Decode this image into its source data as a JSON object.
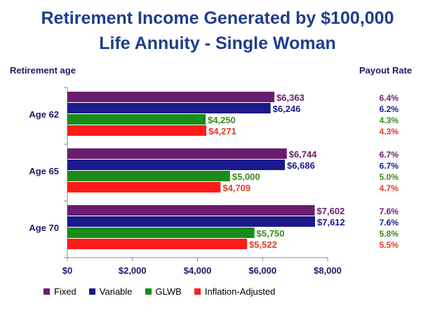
{
  "chart_data": {
    "type": "bar",
    "orientation": "horizontal",
    "title": "Retirement Income Generated by $100,000",
    "subtitle": "Life Annuity - Single Woman",
    "ylabel": "Retirement age",
    "right_column_label": "Payout Rate",
    "categories": [
      "Age 62",
      "Age 65",
      "Age 70"
    ],
    "xlim": [
      0,
      8000
    ],
    "xticks": [
      "$0",
      "$2,000",
      "$4,000",
      "$6,000",
      "$8,000"
    ],
    "xtick_values": [
      0,
      2000,
      4000,
      6000,
      8000
    ],
    "grid": false,
    "legend_position": "bottom",
    "series": [
      {
        "name": "Fixed",
        "color": "#6a1d6e",
        "label_color": "#6a1d6e",
        "values": [
          6363,
          6744,
          7602
        ],
        "labels": [
          "$6,363",
          "$6,744",
          "$7,602"
        ],
        "payout_rates": [
          "6.4%",
          "6.7%",
          "7.6%"
        ]
      },
      {
        "name": "Variable",
        "color": "#1a1a8c",
        "label_color": "#1a1a8c",
        "values": [
          6246,
          6686,
          7612
        ],
        "labels": [
          "$6,246",
          "$6,686",
          "$7,612"
        ],
        "payout_rates": [
          "6.2%",
          "6.7%",
          "7.6%"
        ]
      },
      {
        "name": "GLWB",
        "color": "#1a8c1a",
        "label_color": "#3a8a1e",
        "values": [
          4250,
          5000,
          5750
        ],
        "labels": [
          "$4,250",
          "$5,000",
          "$5,750"
        ],
        "payout_rates": [
          "4.3%",
          "5.0%",
          "5.8%"
        ]
      },
      {
        "name": "Inflation-Adjusted",
        "color": "#ff1a1a",
        "label_color": "#e03a2a",
        "values": [
          4271,
          4709,
          5522
        ],
        "labels": [
          "$4,271",
          "$4,709",
          "$5,522"
        ],
        "payout_rates": [
          "4.3%",
          "4.7%",
          "5.5%"
        ]
      }
    ]
  }
}
